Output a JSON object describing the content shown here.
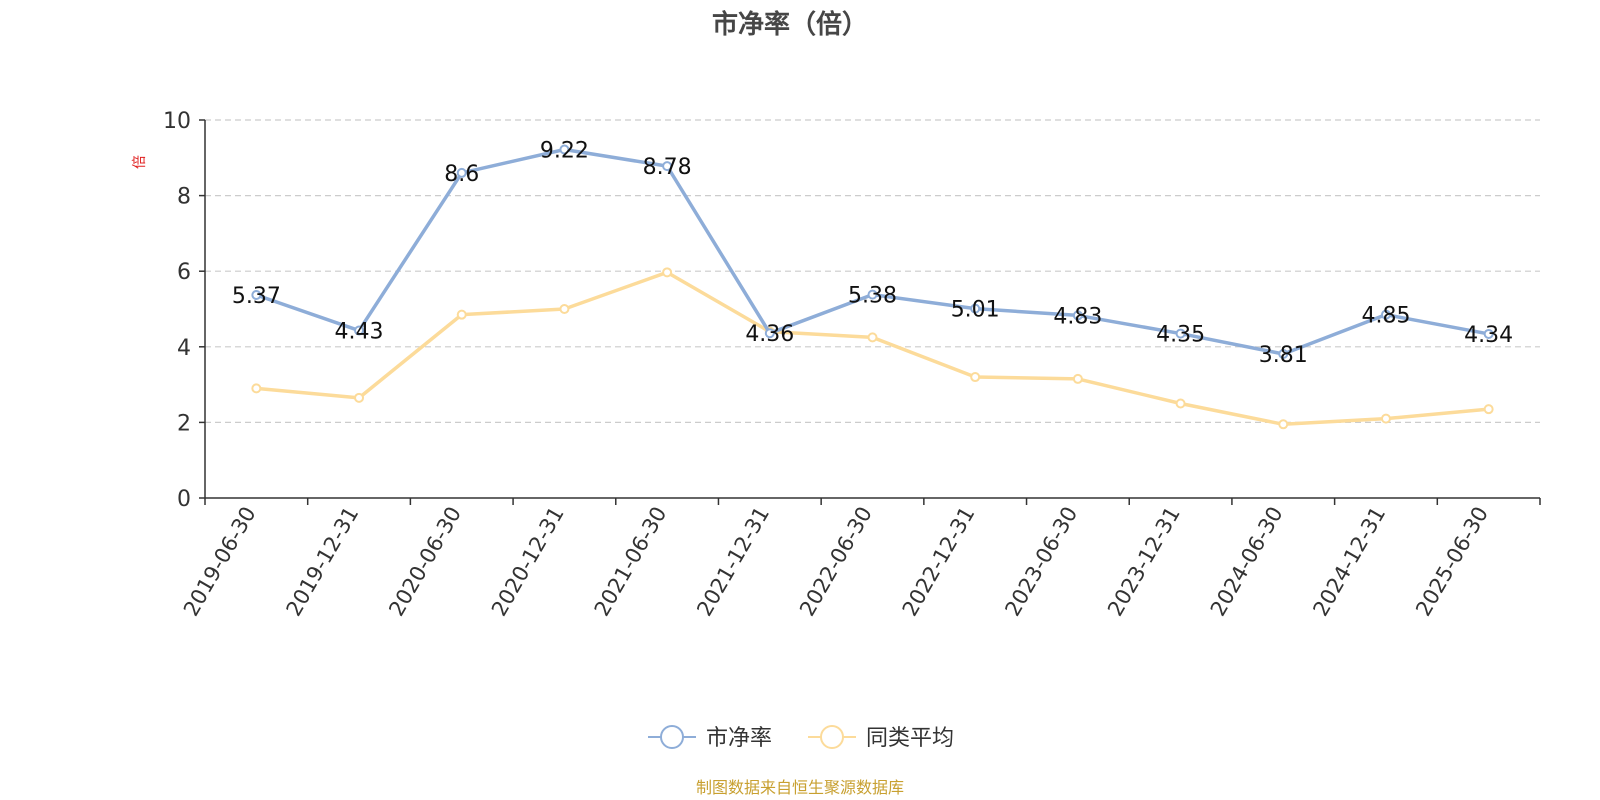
{
  "chart_data": {
    "type": "line",
    "title": "市净率（倍）",
    "ylabel": "倍",
    "categories": [
      "2019-06-30",
      "2019-12-31",
      "2020-06-30",
      "2020-12-31",
      "2021-06-30",
      "2021-12-31",
      "2022-06-30",
      "2022-12-31",
      "2023-06-30",
      "2023-12-31",
      "2024-06-30",
      "2024-12-31",
      "2025-06-30"
    ],
    "ylim": [
      0,
      10
    ],
    "yticks": [
      "0",
      "2",
      "4",
      "6",
      "8",
      "10"
    ],
    "grid": true,
    "legend_position": "bottom-center",
    "series": [
      {
        "name": "市净率",
        "color": "#8eadd8",
        "show_labels": true,
        "values": [
          5.37,
          4.43,
          8.6,
          9.22,
          8.78,
          4.36,
          5.38,
          5.01,
          4.83,
          4.35,
          3.81,
          4.85,
          4.34
        ]
      },
      {
        "name": "同类平均",
        "color": "#fcdb9a",
        "show_labels": false,
        "values": [
          2.9,
          2.65,
          4.85,
          5.0,
          5.97,
          4.4,
          4.25,
          3.2,
          3.15,
          2.5,
          1.95,
          2.1,
          2.35
        ]
      }
    ]
  },
  "footer": {
    "source": "制图数据来自恒生聚源数据库"
  },
  "colors": {
    "axis": "#333333",
    "grid": "#cccccc",
    "ylabel": "#e02020",
    "footer": "#c8a030",
    "title": "#464646",
    "text": "#333333"
  }
}
